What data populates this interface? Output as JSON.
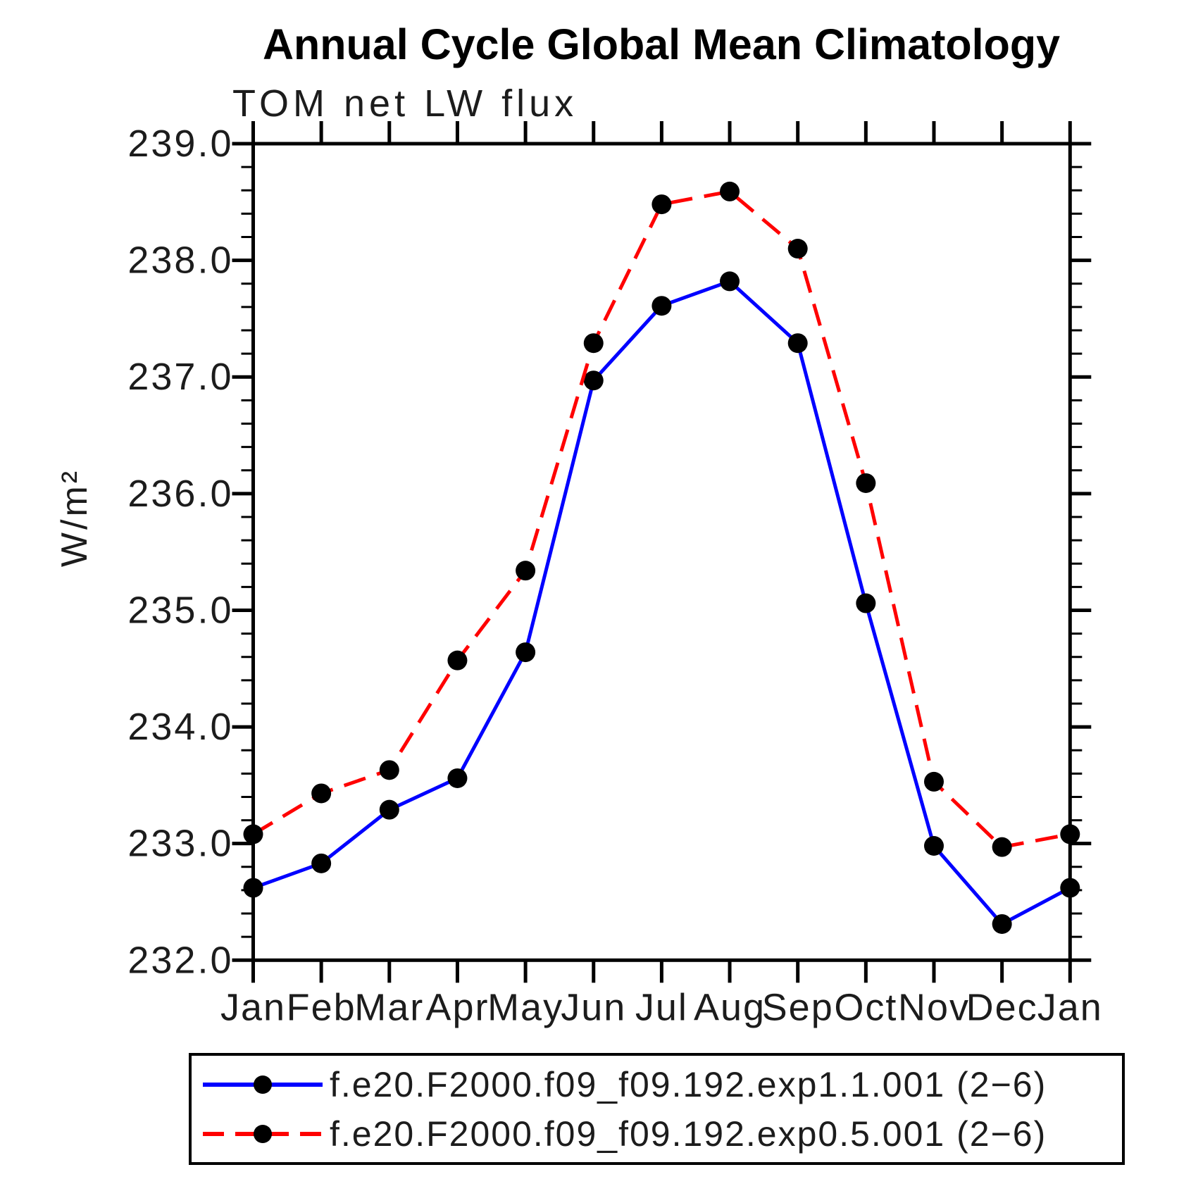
{
  "figure": {
    "background": "#ffffff"
  },
  "chart_data": {
    "type": "line",
    "title": "Annual Cycle Global Mean Climatology",
    "subtitle": "TOM net LW flux",
    "ylabel": "W/m²",
    "xlabel": "",
    "x_categories": [
      "Jan",
      "Feb",
      "Mar",
      "Apr",
      "May",
      "Jun",
      "Jul",
      "Aug",
      "Sep",
      "Oct",
      "Nov",
      "Dec",
      "Jan"
    ],
    "ylim": [
      232.0,
      239.0
    ],
    "ytick_interval": 1.0,
    "ytick_minor_interval": 0.2,
    "ytick_labels": [
      "232.0",
      "233.0",
      "234.0",
      "235.0",
      "236.0",
      "237.0",
      "238.0",
      "239.0"
    ],
    "grid": false,
    "axis_color": "#000000",
    "marker": "circle",
    "marker_color": "#000000",
    "legend_position": "bottom",
    "series": [
      {
        "name": "f.e20.F2000.f09_f09.192.exp1.1.001 (2−6)",
        "color": "#0000ff",
        "line_style": "solid",
        "values": [
          232.62,
          232.83,
          233.29,
          233.56,
          234.64,
          236.97,
          237.61,
          237.82,
          237.29,
          235.06,
          232.98,
          232.31,
          232.62
        ]
      },
      {
        "name": "f.e20.F2000.f09_f09.192.exp0.5.001 (2−6)",
        "color": "#ff0000",
        "line_style": "dashed",
        "values": [
          233.08,
          233.43,
          233.63,
          234.57,
          235.34,
          237.29,
          238.48,
          238.59,
          238.1,
          236.09,
          233.53,
          232.97,
          233.08
        ]
      }
    ]
  }
}
